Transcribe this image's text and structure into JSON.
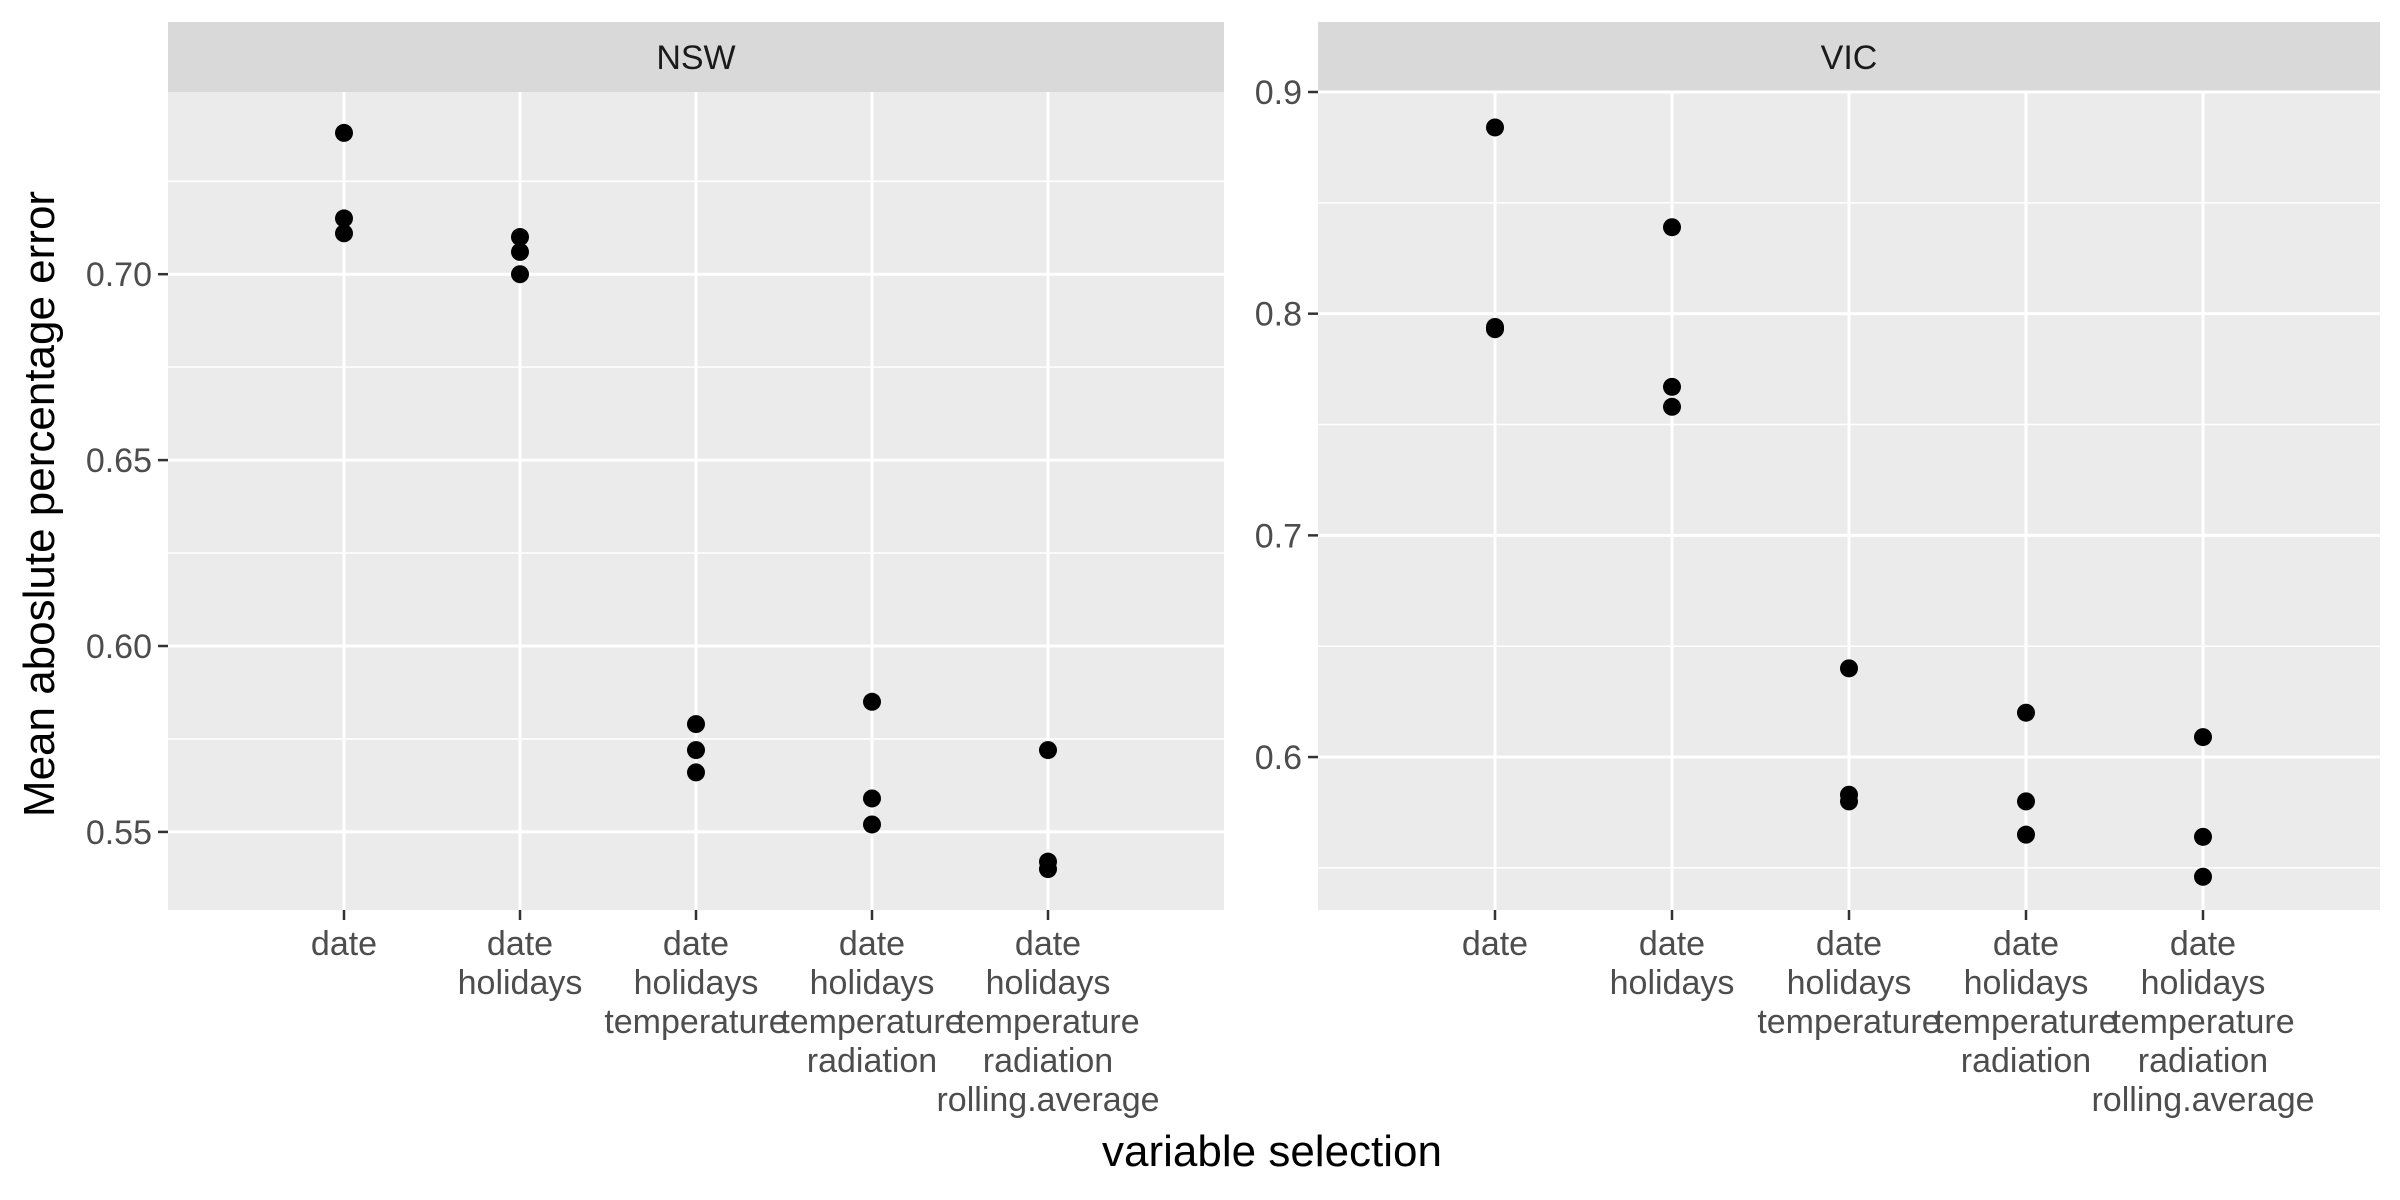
{
  "chart_data": {
    "type": "scatter",
    "xlabel": "variable selection",
    "ylabel": "Mean aboslute percentage error",
    "categories": [
      [
        "date"
      ],
      [
        "date",
        "holidays"
      ],
      [
        "date",
        "holidays",
        "temperature"
      ],
      [
        "date",
        "holidays",
        "temperature",
        "radiation"
      ],
      [
        "date",
        "holidays",
        "temperature",
        "radiation",
        "rolling.average"
      ]
    ],
    "panels": [
      {
        "name": "NSW",
        "ylim": [
          0.529,
          0.749
        ],
        "yticks": [
          0.55,
          0.6,
          0.65,
          0.7
        ],
        "ytick_labels": [
          "0.55",
          "0.60",
          "0.65",
          "0.70"
        ],
        "points": [
          {
            "x": 0,
            "y": 0.738
          },
          {
            "x": 0,
            "y": 0.715
          },
          {
            "x": 0,
            "y": 0.711
          },
          {
            "x": 1,
            "y": 0.71
          },
          {
            "x": 1,
            "y": 0.706
          },
          {
            "x": 1,
            "y": 0.7
          },
          {
            "x": 2,
            "y": 0.579
          },
          {
            "x": 2,
            "y": 0.572
          },
          {
            "x": 2,
            "y": 0.566
          },
          {
            "x": 3,
            "y": 0.585
          },
          {
            "x": 3,
            "y": 0.559
          },
          {
            "x": 3,
            "y": 0.552
          },
          {
            "x": 4,
            "y": 0.572
          },
          {
            "x": 4,
            "y": 0.542
          },
          {
            "x": 4,
            "y": 0.54
          }
        ]
      },
      {
        "name": "VIC",
        "ylim": [
          0.531,
          0.9
        ],
        "yticks": [
          0.6,
          0.7,
          0.8,
          0.9
        ],
        "ytick_labels": [
          "0.6",
          "0.7",
          "0.8",
          "0.9"
        ],
        "points": [
          {
            "x": 0,
            "y": 0.884
          },
          {
            "x": 0,
            "y": 0.794
          },
          {
            "x": 0,
            "y": 0.793
          },
          {
            "x": 1,
            "y": 0.839
          },
          {
            "x": 1,
            "y": 0.767
          },
          {
            "x": 1,
            "y": 0.758
          },
          {
            "x": 2,
            "y": 0.64
          },
          {
            "x": 2,
            "y": 0.583
          },
          {
            "x": 2,
            "y": 0.58
          },
          {
            "x": 3,
            "y": 0.62
          },
          {
            "x": 3,
            "y": 0.58
          },
          {
            "x": 3,
            "y": 0.565
          },
          {
            "x": 4,
            "y": 0.609
          },
          {
            "x": 4,
            "y": 0.564
          },
          {
            "x": 4,
            "y": 0.546
          }
        ]
      }
    ],
    "grid": true,
    "legend": "none",
    "colors": {
      "panel_background": "#ebebeb",
      "strip_background": "#d9d9d9",
      "grid_line": "#ffffff",
      "point": "#000000"
    }
  }
}
